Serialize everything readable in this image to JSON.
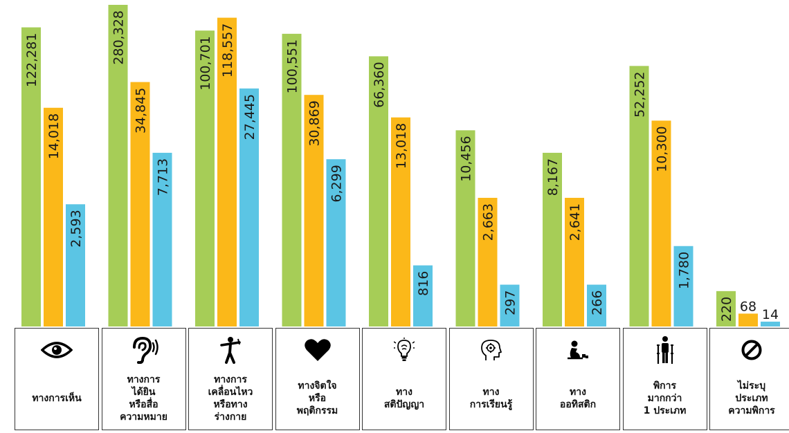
{
  "chart_data": {
    "type": "bar",
    "categories": [
      "ทางการเห็น",
      "ทางการ\nได้ยิน\nหรือสื่อ\nความหมาย",
      "ทางการ\nเคลื่อนไหว\nหรือทาง\nร่างกาย",
      "ทางจิตใจ\nหรือ\nพฤติกรรม",
      "ทาง\nสติปัญญา",
      "ทาง\nการเรียนรู้",
      "ทาง\nออทิสติก",
      "พิการ\nมากกว่า\n1 ประเภท",
      "ไม่ระบุ\nประเภท\nความพิการ"
    ],
    "icons": [
      "eye-icon",
      "ear-icon",
      "mobility-figure-icon",
      "heart-icon",
      "lightbulb-brain-icon",
      "learning-head-icon",
      "autism-figure-icon",
      "crutches-figure-icon",
      "prohibited-icon"
    ],
    "series": [
      {
        "color": "#a6cd57",
        "values": [
          122281,
          280328,
          100701,
          100551,
          66360,
          10456,
          8167,
          52252,
          220
        ],
        "labels": [
          "122,281",
          "280,328",
          "100,701",
          "100,551",
          "66,360",
          "10,456",
          "8,167",
          "52,252",
          "220"
        ]
      },
      {
        "color": "#fbb819",
        "values": [
          14018,
          34845,
          118557,
          30869,
          13018,
          2663,
          2641,
          10300,
          68
        ],
        "labels": [
          "14,018",
          "34,845",
          "118,557",
          "30,869",
          "13,018",
          "2,663",
          "2,641",
          "10,300",
          "68"
        ]
      },
      {
        "color": "#5bc5e4",
        "values": [
          2593,
          7713,
          27445,
          6299,
          816,
          297,
          266,
          1780,
          14
        ],
        "labels": [
          "2,593",
          "7,713",
          "27,445",
          "6,299",
          "816",
          "297",
          "266",
          "1,780",
          "14"
        ]
      }
    ],
    "scale": "independent per category; bar height is not proportional to value",
    "display_levels": [
      [
        0.93,
        0.68,
        0.38
      ],
      [
        1.0,
        0.76,
        0.54
      ],
      [
        0.92,
        0.96,
        0.74
      ],
      [
        0.91,
        0.72,
        0.52
      ],
      [
        0.84,
        0.65,
        0.19
      ],
      [
        0.61,
        0.4,
        0.13
      ],
      [
        0.54,
        0.4,
        0.13
      ],
      [
        0.81,
        0.64,
        0.25
      ],
      [
        0.11,
        0.04,
        0.015
      ]
    ],
    "legend": "none",
    "grid": false
  }
}
